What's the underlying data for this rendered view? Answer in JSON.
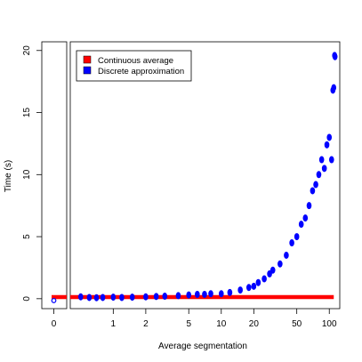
{
  "chart_data": {
    "type": "scatter",
    "xlabel": "Average segmentation",
    "ylabel": "Time (s)",
    "x_scale": "log",
    "xlim": [
      0.4,
      125
    ],
    "ylim": [
      -0.8,
      20.7
    ],
    "x_tick_labels": [
      "0",
      "1",
      "2",
      "5",
      "10",
      "20",
      "50",
      "100"
    ],
    "y_tick_labels": [
      "0",
      "5",
      "10",
      "15",
      "20"
    ],
    "legend": {
      "placement": "top-left",
      "entries": [
        {
          "label": "Continuous average",
          "color": "#ff0000"
        },
        {
          "label": "Discrete approximation",
          "color": "#0000ff"
        }
      ]
    },
    "series": [
      {
        "name": "Continuous average",
        "color": "#ff0000",
        "render": "thick-line",
        "x": [
          0.4,
          110
        ],
        "y": [
          0.13,
          0.13
        ],
        "zero_panel_y": 0.13
      },
      {
        "name": "Discrete approximation",
        "color": "#0000ff",
        "render": "points",
        "zero_panel_y": -0.15,
        "points": [
          [
            0.5,
            0.15
          ],
          [
            0.6,
            0.1
          ],
          [
            0.7,
            0.08
          ],
          [
            0.8,
            0.1
          ],
          [
            1.0,
            0.12
          ],
          [
            1.2,
            0.1
          ],
          [
            1.5,
            0.12
          ],
          [
            2.0,
            0.15
          ],
          [
            2.5,
            0.18
          ],
          [
            3.0,
            0.2
          ],
          [
            4.0,
            0.25
          ],
          [
            5.0,
            0.3
          ],
          [
            6.0,
            0.35
          ],
          [
            7.0,
            0.35
          ],
          [
            8.0,
            0.4
          ],
          [
            10.0,
            0.4
          ],
          [
            12.0,
            0.5
          ],
          [
            15.0,
            0.7
          ],
          [
            18.0,
            0.9
          ],
          [
            20.0,
            1.0
          ],
          [
            22.0,
            1.3
          ],
          [
            25.0,
            1.6
          ],
          [
            28.0,
            2.0
          ],
          [
            30.0,
            2.3
          ],
          [
            35.0,
            2.8
          ],
          [
            40.0,
            3.5
          ],
          [
            45.0,
            4.5
          ],
          [
            50.0,
            5.0
          ],
          [
            55.0,
            6.0
          ],
          [
            60.0,
            6.5
          ],
          [
            65.0,
            7.5
          ],
          [
            70.0,
            8.7
          ],
          [
            75.0,
            9.2
          ],
          [
            80.0,
            10.0
          ],
          [
            85.0,
            11.2
          ],
          [
            90.0,
            10.5
          ],
          [
            95.0,
            12.4
          ],
          [
            100.0,
            13.0
          ],
          [
            105.0,
            11.2
          ],
          [
            108.0,
            16.8
          ],
          [
            110.0,
            17.0
          ],
          [
            112.0,
            19.6
          ],
          [
            113.0,
            19.5
          ]
        ]
      }
    ]
  }
}
